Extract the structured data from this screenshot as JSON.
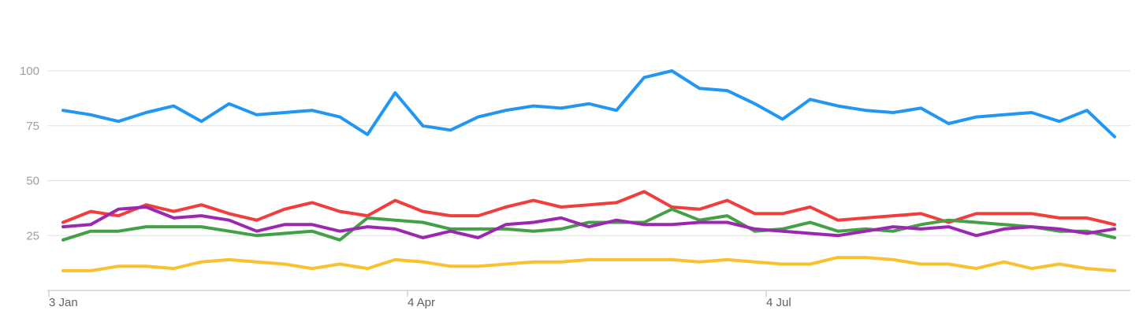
{
  "chart_data": {
    "type": "line",
    "title": "",
    "xlabel": "",
    "ylabel": "",
    "ylim": [
      0,
      100
    ],
    "y_ticks": [
      25,
      50,
      75,
      100
    ],
    "x_tick_labels": [
      "3 Jan",
      "4 Apr",
      "4 Jul"
    ],
    "grid": true,
    "x": [
      "3 Jan",
      "10 Jan",
      "17 Jan",
      "24 Jan",
      "31 Jan",
      "7 Feb",
      "14 Feb",
      "21 Feb",
      "28 Feb",
      "7 Mar",
      "14 Mar",
      "21 Mar",
      "28 Mar",
      "4 Apr",
      "11 Apr",
      "18 Apr",
      "25 Apr",
      "2 May",
      "9 May",
      "16 May",
      "23 May",
      "30 May",
      "6 Jun",
      "13 Jun",
      "20 Jun",
      "27 Jun",
      "4 Jul",
      "11 Jul",
      "18 Jul",
      "25 Jul",
      "1 Aug",
      "8 Aug",
      "15 Aug",
      "22 Aug",
      "29 Aug",
      "5 Sep",
      "12 Sep",
      "19 Sep",
      "26 Sep",
      "3 Oct",
      "10 Oct"
    ],
    "series": [
      {
        "color": "#2196f3",
        "values": [
          82,
          80,
          77,
          81,
          84,
          77,
          85,
          80,
          81,
          82,
          79,
          71,
          90,
          75,
          73,
          79,
          82,
          84,
          83,
          85,
          82,
          97,
          100,
          92,
          91,
          85,
          78,
          87,
          84,
          82,
          81,
          83,
          76,
          79,
          80,
          81,
          77,
          82,
          70,
          70,
          70
        ]
      },
      {
        "color": "#f23d3d",
        "values": [
          31,
          36,
          34,
          39,
          36,
          39,
          35,
          32,
          37,
          40,
          36,
          34,
          41,
          36,
          34,
          34,
          38,
          41,
          38,
          39,
          40,
          45,
          38,
          37,
          41,
          35,
          35,
          38,
          32,
          33,
          34,
          35,
          31,
          35,
          35,
          35,
          33,
          33,
          30,
          30,
          30
        ]
      },
      {
        "color": "#43a047",
        "values": [
          23,
          27,
          27,
          29,
          29,
          29,
          27,
          25,
          26,
          27,
          23,
          33,
          32,
          31,
          28,
          28,
          28,
          27,
          28,
          31,
          31,
          31,
          37,
          32,
          34,
          27,
          28,
          31,
          27,
          28,
          27,
          30,
          32,
          31,
          30,
          29,
          27,
          27,
          24,
          24,
          24
        ]
      },
      {
        "color": "#9c27b0",
        "values": [
          29,
          30,
          37,
          38,
          33,
          34,
          32,
          27,
          30,
          30,
          27,
          29,
          28,
          24,
          27,
          24,
          30,
          31,
          33,
          29,
          32,
          30,
          30,
          31,
          31,
          28,
          27,
          26,
          25,
          27,
          29,
          28,
          29,
          25,
          28,
          29,
          28,
          26,
          28,
          28,
          28
        ]
      },
      {
        "color": "#fbc02d",
        "values": [
          9,
          9,
          11,
          11,
          10,
          13,
          14,
          13,
          12,
          10,
          12,
          10,
          14,
          13,
          11,
          11,
          12,
          13,
          13,
          14,
          14,
          14,
          14,
          13,
          14,
          13,
          12,
          12,
          15,
          15,
          14,
          12,
          12,
          10,
          13,
          10,
          12,
          10,
          9,
          9,
          9
        ]
      }
    ]
  }
}
